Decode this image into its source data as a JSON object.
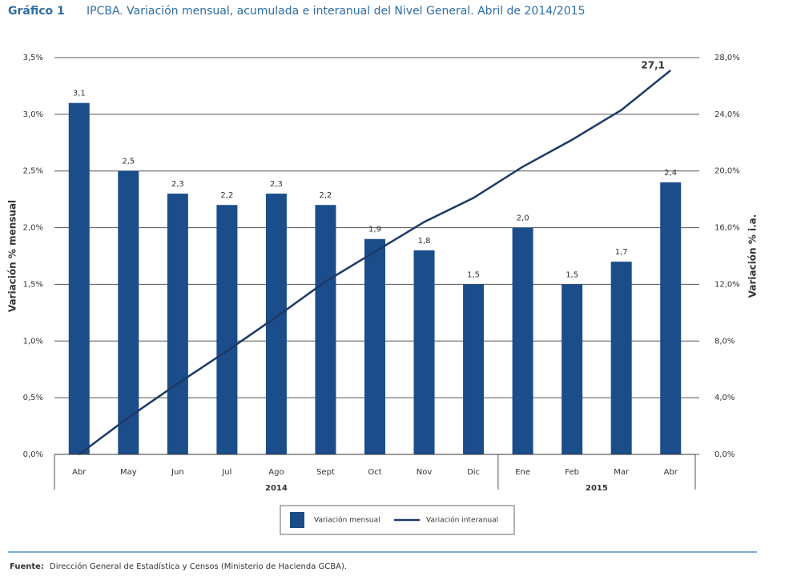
{
  "chart_data": {
    "type": "bar_line",
    "title_number": "Gráfico 1",
    "title": "IPCBA. Variación mensual, acumulada e interanual del Nivel General. Abril de 2014/2015",
    "y_label": "Variación % mensual",
    "y2_label": "Variación % i.a.",
    "categories": [
      "Abr",
      "May",
      "Jun",
      "Jul",
      "Ago",
      "Sept",
      "Oct",
      "Nov",
      "Dic",
      "Ene",
      "Feb",
      "Mar",
      "Abr"
    ],
    "x_groups": [
      "2014",
      "2015"
    ],
    "series": [
      {
        "name": "Variación mensual",
        "type": "bar",
        "color": "#1b4d8a",
        "values": [
          3.1,
          2.5,
          2.3,
          2.2,
          2.3,
          2.2,
          1.9,
          1.8,
          1.5,
          2.0,
          1.5,
          1.7,
          2.4
        ],
        "value_labels": [
          "3,1",
          "2,5",
          "2,3",
          "2,2",
          "2,3",
          "2,2",
          "1,9",
          "1,8",
          "1,5",
          "2,0",
          "1,5",
          "1,7",
          "2,4"
        ]
      },
      {
        "name": "Variación interanual",
        "type": "line",
        "axis": "y2",
        "color": "#1c3a66",
        "values": [
          0,
          2.6,
          5.0,
          7.3,
          9.7,
          12.2,
          14.3,
          16.4,
          18.1,
          20.3,
          22.2,
          24.3,
          27.1
        ],
        "value_labels": [
          null,
          null,
          null,
          null,
          null,
          null,
          null,
          null,
          null,
          null,
          null,
          null,
          "27,1"
        ]
      }
    ],
    "ylim": [
      0,
      3.5
    ],
    "yticks": [
      {
        "value": 0,
        "label": "0,0%"
      },
      {
        "value": 0.5,
        "label": "0,5%"
      },
      {
        "value": 1,
        "label": "1,0%"
      },
      {
        "value": 1.5,
        "label": "1,5%"
      },
      {
        "value": 2,
        "label": "2,0%"
      },
      {
        "value": 2.5,
        "label": "2,5%"
      },
      {
        "value": 3,
        "label": "3,0%"
      },
      {
        "value": 3.5,
        "label": "3,5%"
      }
    ],
    "y2lim": [
      0,
      28
    ],
    "y2ticks": [
      {
        "value": 0,
        "label": "0,0%"
      },
      {
        "value": 4,
        "label": "4,0%"
      },
      {
        "value": 8,
        "label": "8,0%"
      },
      {
        "value": 12,
        "label": "12,0%"
      },
      {
        "value": 16,
        "label": "16,0%"
      },
      {
        "value": 20,
        "label": "20,0%"
      },
      {
        "value": 24,
        "label": "24,0%"
      },
      {
        "value": 28,
        "label": "28,0%"
      }
    ],
    "grid": true,
    "legend": "bottom",
    "source_label": "Fuente:",
    "source": "Dirección General de Estadística y Censos (Ministerio de Hacienda GCBA)."
  }
}
